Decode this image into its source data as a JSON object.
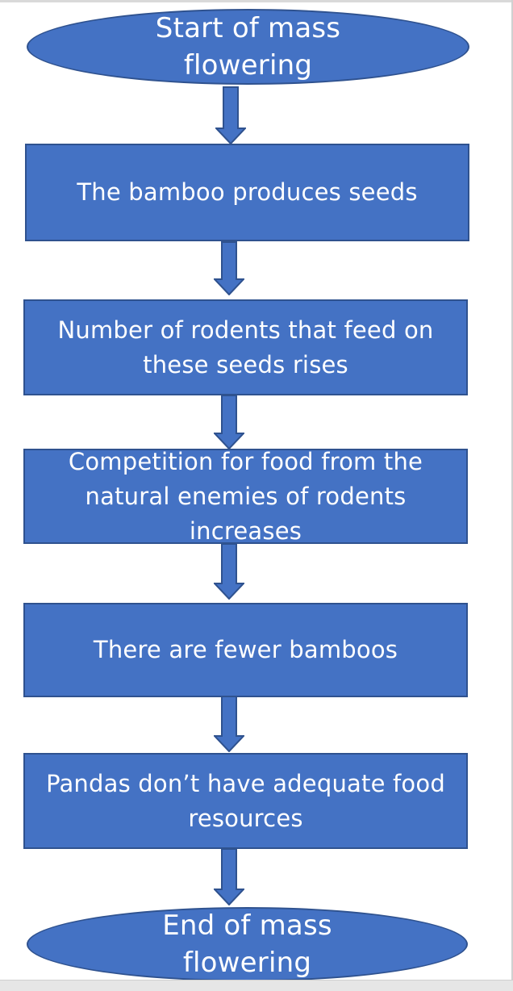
{
  "flowchart": {
    "start": "Start of mass flowering",
    "steps": [
      "The bamboo produces seeds",
      "Number of rodents that feed on these seeds rises",
      "Competition for food from the natural enemies of rodents increases",
      "There are fewer bamboos",
      "Pandas don’t have adequate food resources"
    ],
    "end": "End of mass flowering"
  },
  "colors": {
    "fill": "#4472C4",
    "border": "#2F528F",
    "text": "#FFFFFF"
  }
}
